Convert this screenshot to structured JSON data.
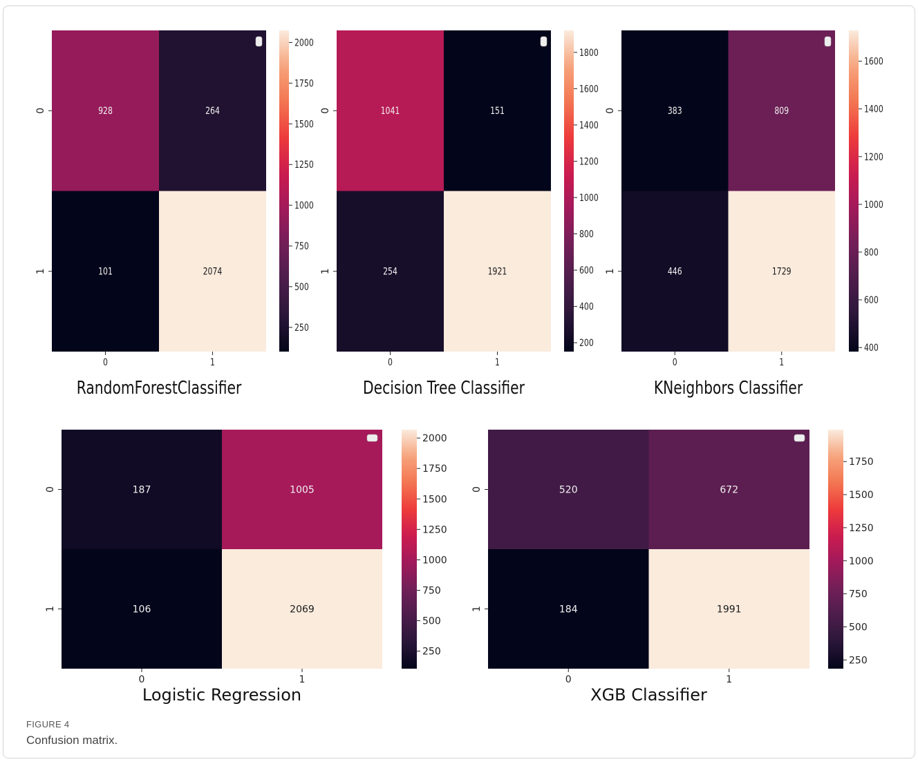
{
  "figure": {
    "label": "FIGURE 4",
    "caption": "Confusion matrix."
  },
  "chart_data": [
    {
      "type": "heatmap",
      "title": "RandomForestClassifier",
      "row_labels": [
        "0",
        "1"
      ],
      "col_labels": [
        "0",
        "1"
      ],
      "values": [
        [
          928,
          264
        ],
        [
          101,
          2074
        ]
      ],
      "colorbar_range": [
        101,
        2074
      ],
      "colorbar_ticks": [
        250,
        500,
        750,
        1000,
        1250,
        1500,
        1750,
        2000
      ],
      "colormap": "rocket"
    },
    {
      "type": "heatmap",
      "title": "Decision Tree Classifier",
      "row_labels": [
        "0",
        "1"
      ],
      "col_labels": [
        "0",
        "1"
      ],
      "values": [
        [
          1041,
          151
        ],
        [
          254,
          1921
        ]
      ],
      "colorbar_range": [
        151,
        1921
      ],
      "colorbar_ticks": [
        200,
        400,
        600,
        800,
        1000,
        1200,
        1400,
        1600,
        1800
      ],
      "colormap": "rocket"
    },
    {
      "type": "heatmap",
      "title": "KNeighbors Classifier",
      "row_labels": [
        "0",
        "1"
      ],
      "col_labels": [
        "0",
        "1"
      ],
      "values": [
        [
          383,
          809
        ],
        [
          446,
          1729
        ]
      ],
      "colorbar_range": [
        383,
        1729
      ],
      "colorbar_ticks": [
        400,
        600,
        800,
        1000,
        1200,
        1400,
        1600
      ],
      "colormap": "rocket"
    },
    {
      "type": "heatmap",
      "title": "Logistic Regression",
      "row_labels": [
        "0",
        "1"
      ],
      "col_labels": [
        "0",
        "1"
      ],
      "values": [
        [
          187,
          1005
        ],
        [
          106,
          2069
        ]
      ],
      "colorbar_range": [
        106,
        2069
      ],
      "colorbar_ticks": [
        250,
        500,
        750,
        1000,
        1250,
        1500,
        1750,
        2000
      ],
      "colormap": "rocket"
    },
    {
      "type": "heatmap",
      "title": "XGB Classifier",
      "row_labels": [
        "0",
        "1"
      ],
      "col_labels": [
        "0",
        "1"
      ],
      "values": [
        [
          520,
          672
        ],
        [
          184,
          1991
        ]
      ],
      "colorbar_range": [
        184,
        1991
      ],
      "colorbar_ticks": [
        250,
        500,
        750,
        1000,
        1250,
        1500,
        1750
      ],
      "colormap": "rocket"
    }
  ],
  "colors": {
    "rocket_stops": [
      "#03051a",
      "#2a1638",
      "#4c1d4b",
      "#711f57",
      "#a11a5b",
      "#cb1b4f",
      "#ed3b3b",
      "#f37651",
      "#f6a47c",
      "#faebdd"
    ]
  }
}
